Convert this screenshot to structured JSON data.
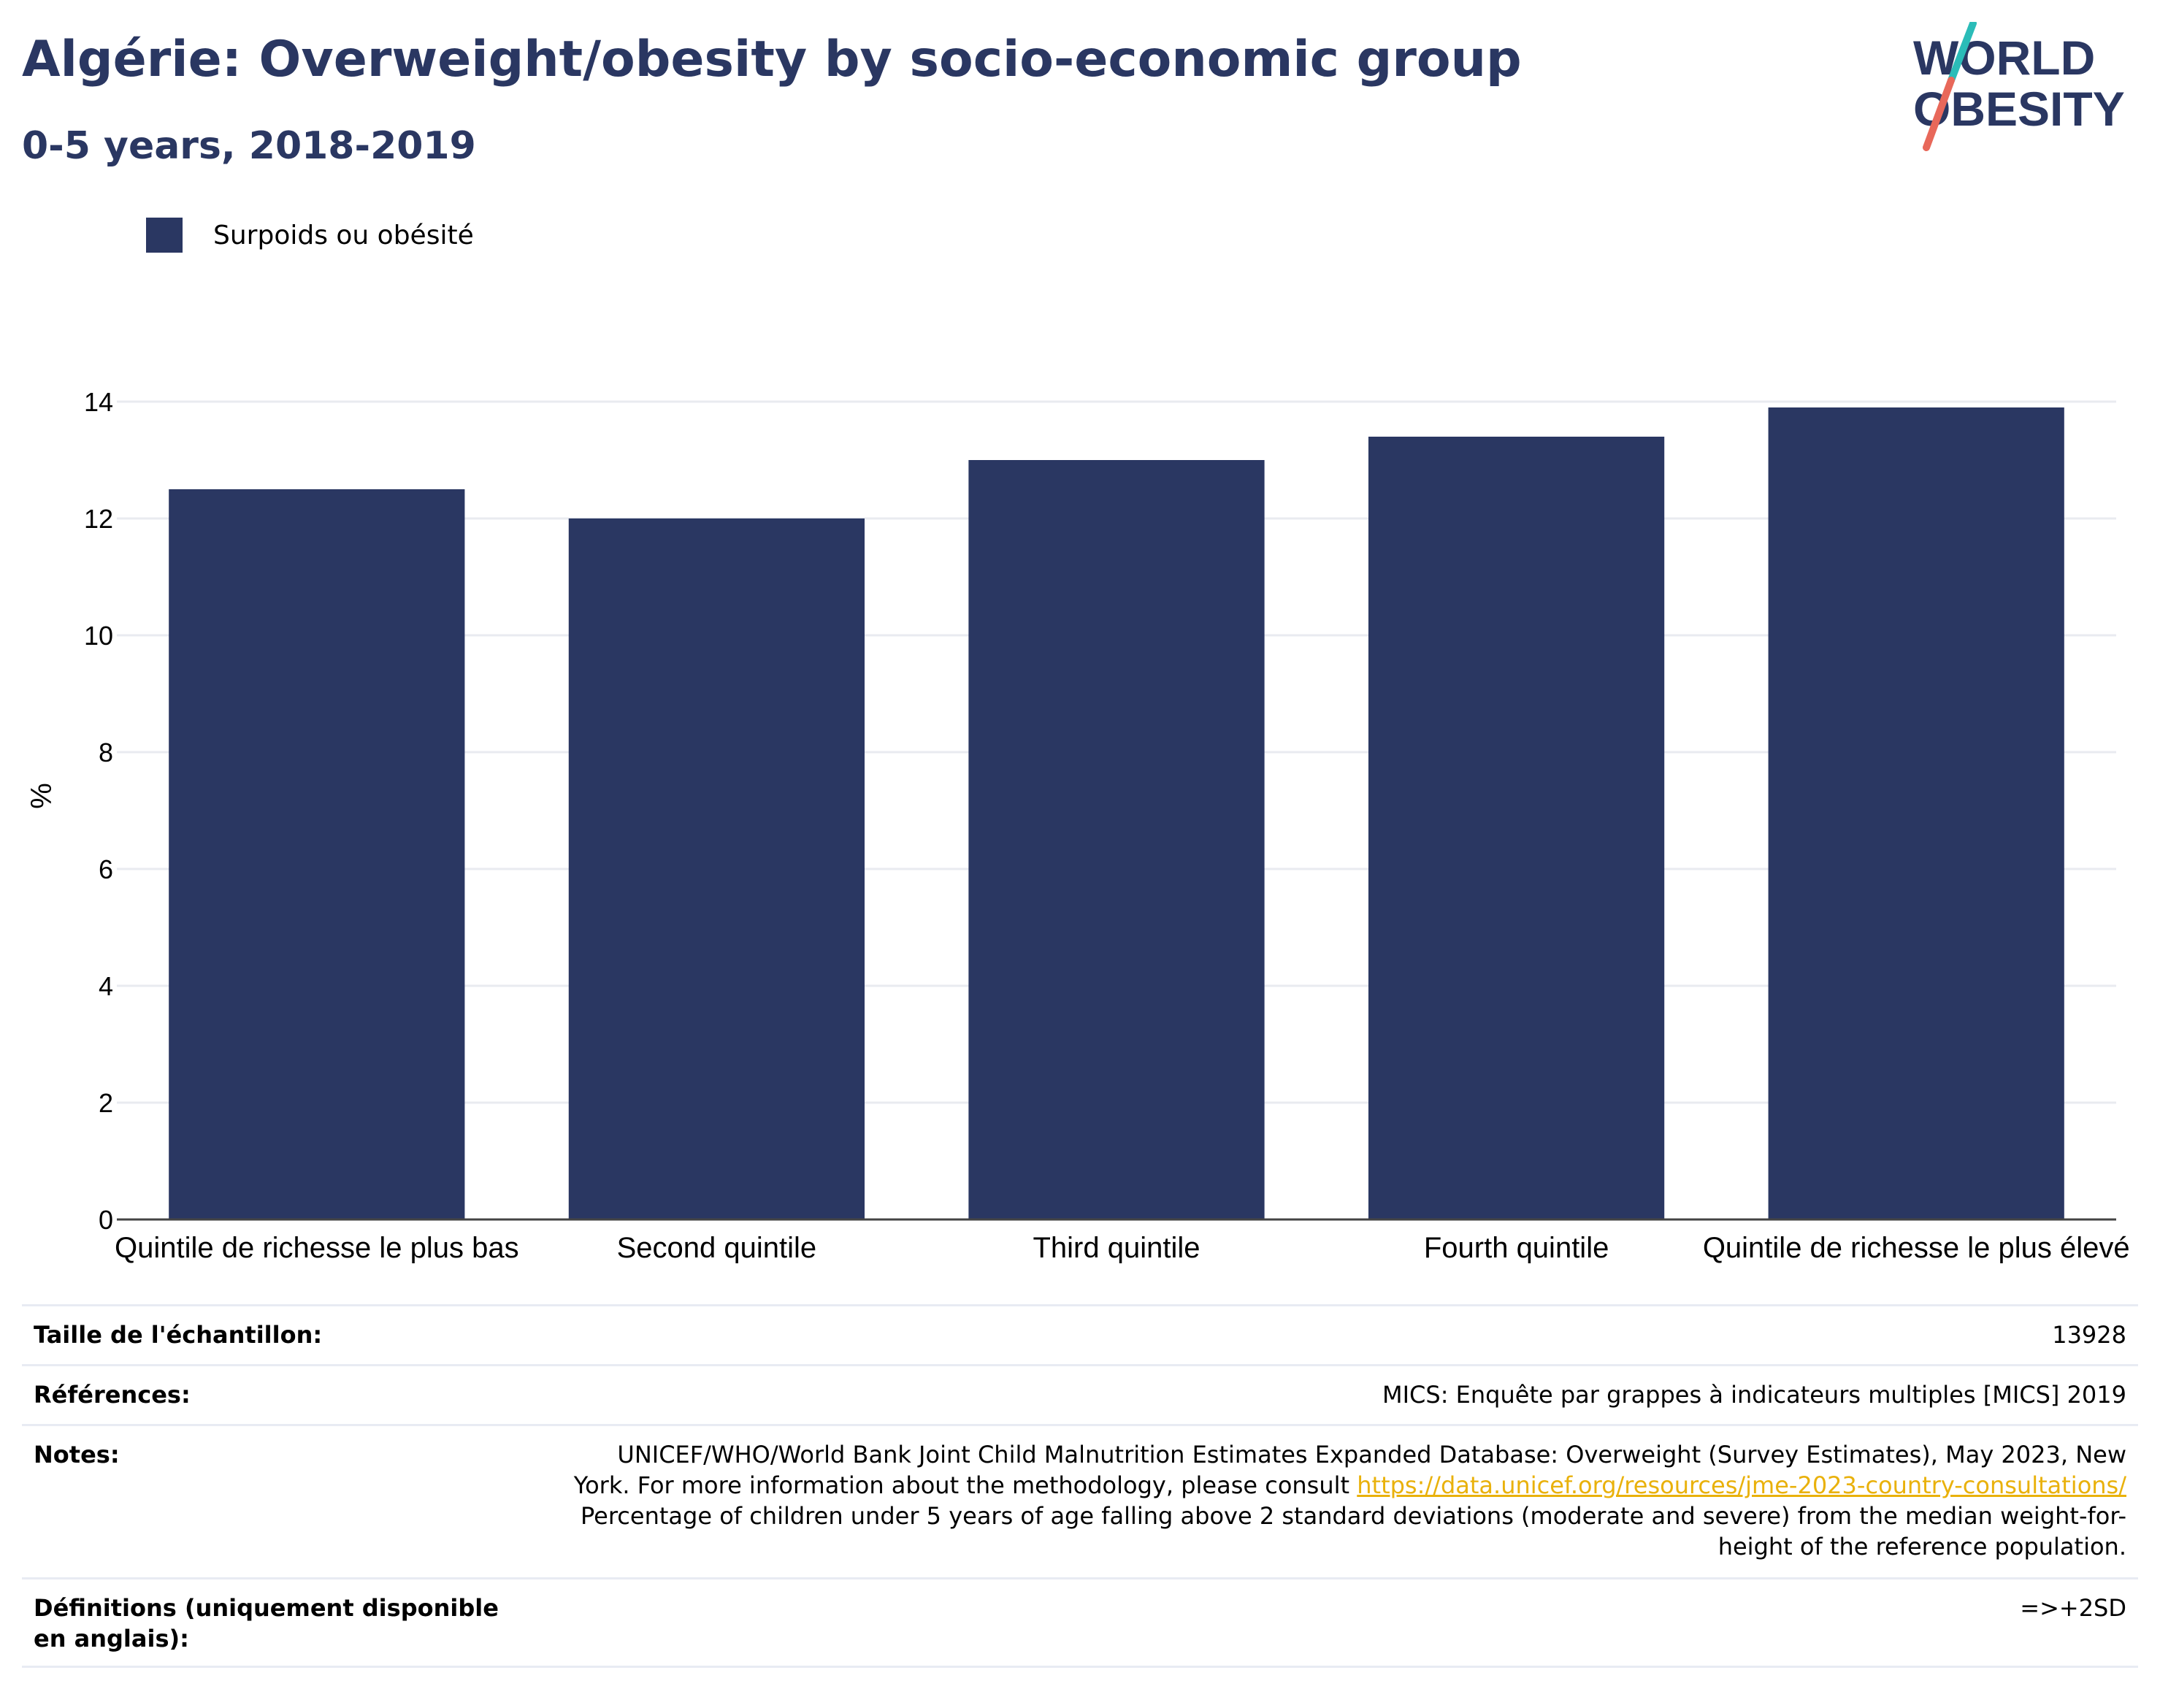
{
  "header": {
    "title": "Algérie: Overweight/obesity by socio-economic group",
    "subtitle": "0-5 years, 2018-2019"
  },
  "logo": {
    "line1": "WORLD",
    "line2": "OBESITY",
    "colors": {
      "text": "#2a3762",
      "slash_top": "#2bbcb8",
      "slash_bottom": "#e8685a"
    }
  },
  "legend": {
    "label": "Surpoids ou obésité",
    "color": "#2a3762"
  },
  "chart_data": {
    "type": "bar",
    "categories": [
      "Quintile de richesse le plus bas",
      "Second quintile",
      "Third quintile",
      "Fourth quintile",
      "Quintile de richesse le plus élevé"
    ],
    "series": [
      {
        "name": "Surpoids ou obésité",
        "values": [
          12.5,
          12.0,
          13.0,
          13.4,
          13.9
        ],
        "color": "#2a3762"
      }
    ],
    "ylabel": "%",
    "ylim": [
      0,
      14
    ],
    "yticks": [
      0,
      2,
      4,
      6,
      8,
      10,
      12,
      14
    ],
    "grid": true,
    "legend_position": "top-left"
  },
  "info": {
    "sample_size": {
      "label": "Taille de l'échantillon:",
      "value": "13928"
    },
    "references": {
      "label": "Références:",
      "value": "MICS: Enquête par grappes à indicateurs multiples [MICS] 2019"
    },
    "notes": {
      "label": "Notes:",
      "line1": "UNICEF/WHO/World Bank Joint Child Malnutrition Estimates Expanded Database: Overweight (Survey Estimates), May 2023, New",
      "line2_prefix": "York. For more information about the methodology, please consult ",
      "link": "https://data.unicef.org/resources/jme-2023-country-consultations/",
      "line3": "Percentage of children under 5 years of age falling above 2 standard deviations (moderate and severe) from the median weight-for-",
      "line4": "height of the reference population."
    },
    "definitions": {
      "label": "Définitions (uniquement disponible en anglais):",
      "value": "=>+2SD"
    }
  }
}
